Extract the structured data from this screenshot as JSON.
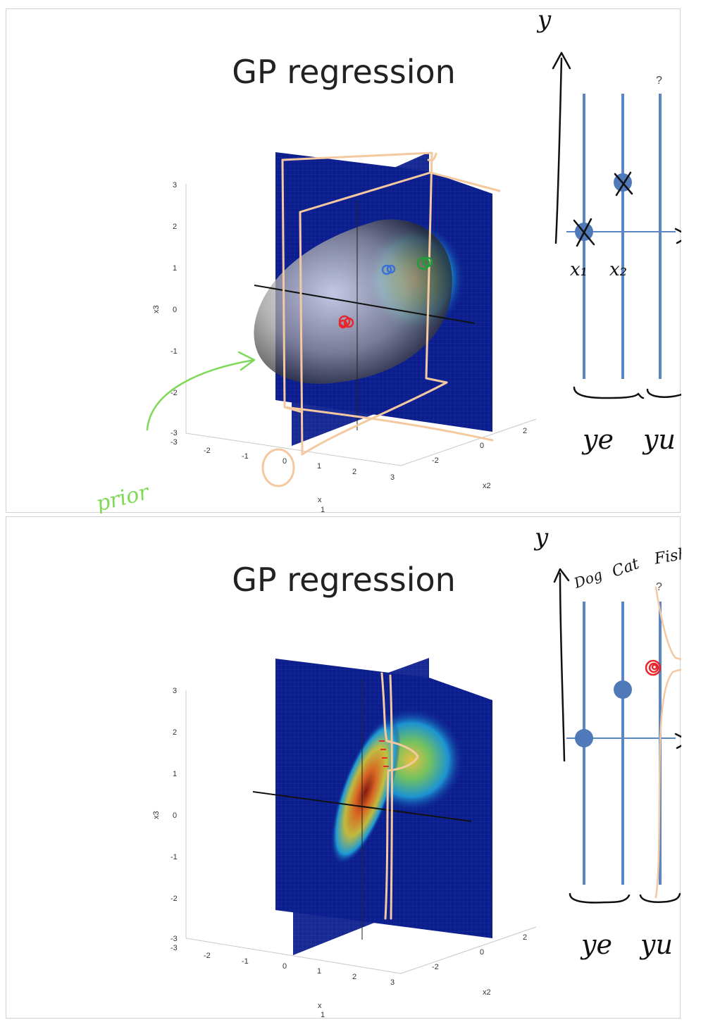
{
  "slides": [
    {
      "title": "GP regression",
      "z_ticks": [
        "3",
        "2",
        "1",
        "0",
        "-1",
        "-2",
        "-3"
      ],
      "x1_ticks": [
        "-3",
        "-2",
        "-1",
        "0",
        "1",
        "2",
        "3"
      ],
      "x2_ticks": [
        "2",
        "0",
        "-2"
      ],
      "z_label": "x3",
      "x1_label": "x",
      "x1_label_sub": "1",
      "x2_label": "x2",
      "annotations": {
        "question": "?",
        "y_axis": "y",
        "x_axis": "x",
        "x1": "x₁",
        "x2": "x₂",
        "brace_left": "ye",
        "brace_right": "yu",
        "prior": "prior"
      }
    },
    {
      "title": "GP regression",
      "z_ticks": [
        "3",
        "2",
        "1",
        "0",
        "-1",
        "-2",
        "-3"
      ],
      "x1_ticks": [
        "-3",
        "-2",
        "-1",
        "0",
        "1",
        "2",
        "3"
      ],
      "x2_ticks": [
        "2",
        "0",
        "-2"
      ],
      "z_label": "x3",
      "x1_label": "x",
      "x1_label_sub": "1",
      "x2_label": "x2",
      "annotations": {
        "question": "?",
        "y_axis": "y",
        "x_axis": "x",
        "labels_top": [
          "Dog",
          "Cat",
          "Fish"
        ],
        "brace_left": "ye",
        "brace_right": "yu"
      }
    }
  ],
  "colors": {
    "panel_blue": "#0c1e8c",
    "column_blue": "#5b86c6",
    "point_blue": "#4f79b8",
    "ink_orange": "#f4c9a0",
    "ink_green": "#7ed957",
    "ink_red": "#e8262b",
    "ink_blue": "#3b6fd6",
    "ink_dark_green": "#1f9d3a"
  }
}
